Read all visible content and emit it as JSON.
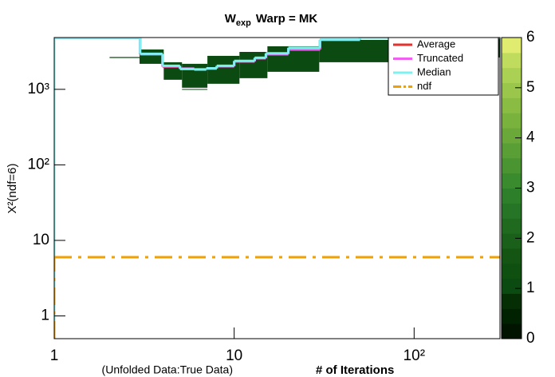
{
  "chart_data": {
    "type": "step",
    "title": "W",
    "title_sub": "exp",
    "title_rest": "Warp = MK",
    "xlabel_note": "(Unfolded Data:True Data)",
    "xlabel": "# of Iterations",
    "ylabel": "Χ²(ndf=6)",
    "xscale": "log",
    "yscale": "log",
    "xlim": [
      1,
      300
    ],
    "ylim": [
      0.5,
      4850
    ],
    "xticks": [
      1,
      10,
      {
        "value": 100,
        "label": "10²"
      }
    ],
    "yticks": [
      1,
      10,
      {
        "value": 100,
        "label": "10²"
      },
      {
        "value": 1000,
        "label": "10³"
      }
    ],
    "legend": "top-right",
    "hist2d": {
      "zlim": [
        0,
        6
      ],
      "zticks": [
        0,
        1,
        2,
        3,
        4,
        5,
        6
      ],
      "palette": [
        "#001400",
        "#002200",
        "#052e05",
        "#0b4a10",
        "#0f5010",
        "#145514",
        "#1a601a",
        "#206a20",
        "#267526",
        "#2e7f2a",
        "#3a8a2e",
        "#4a9432",
        "#5a9e36",
        "#6aa83a",
        "#7ab23e",
        "#8abc44",
        "#9ac64c",
        "#aad054",
        "#c0dc5e",
        "#e0ec70"
      ],
      "cells": [
        {
          "x": [
            2.03,
            4.06
          ],
          "y": [
            2600,
            2680
          ],
          "z": 1
        },
        {
          "x": [
            2.98,
            4.06
          ],
          "y": [
            2177,
            3373
          ],
          "z": 1
        },
        {
          "x": [
            4.06,
            5.13
          ],
          "y": [
            1339,
            2285
          ],
          "z": 1
        },
        {
          "x": [
            5.13,
            7.1
          ],
          "y": [
            1050,
            2177
          ],
          "z": 1
        },
        {
          "x": [
            5.13,
            7.1
          ],
          "y": [
            990,
            1010
          ],
          "z": 1
        },
        {
          "x": [
            7.1,
            10.7
          ],
          "y": [
            1185,
            2775
          ],
          "z": 1
        },
        {
          "x": [
            10.7,
            15.3
          ],
          "y": [
            1405,
            3130
          ],
          "z": 1
        },
        {
          "x": [
            15.3,
            29.7
          ],
          "y": [
            1707,
            3717
          ],
          "z": 1
        },
        {
          "x": [
            29.7,
            72.5
          ],
          "y": [
            2285,
            4520
          ],
          "z": 1
        },
        {
          "x": [
            72.5,
            300
          ],
          "y": [
            2645,
            4850
          ],
          "z": 1
        }
      ]
    },
    "series": [
      {
        "name": "Average",
        "color": "#e8312f",
        "dash": "solid",
        "bins": [
          1,
          3,
          4,
          5,
          6,
          7,
          8,
          10,
          13,
          15,
          20,
          30,
          50,
          300
        ],
        "values": [
          4800,
          2900,
          2000,
          1870,
          1840,
          1880,
          2020,
          2340,
          2580,
          2920,
          3370,
          4520,
          4850
        ]
      },
      {
        "name": "Truncated",
        "color": "#f060f0",
        "dash": "solid",
        "bins": [
          1,
          3,
          4,
          5,
          6,
          7,
          8,
          10,
          13,
          15,
          20,
          30,
          50,
          300
        ],
        "values": [
          4800,
          2920,
          2020,
          1880,
          1840,
          1880,
          2020,
          2340,
          2580,
          2920,
          3370,
          4520,
          4850
        ]
      },
      {
        "name": "Median",
        "color": "#7ff0f0",
        "dash": "solid",
        "bins": [
          1,
          3,
          4,
          5,
          6,
          7,
          8,
          10,
          13,
          15,
          20,
          30,
          50,
          300
        ],
        "values": [
          4800,
          2950,
          2050,
          1860,
          1830,
          1900,
          2050,
          2380,
          2620,
          3000,
          3550,
          4550,
          4850
        ]
      },
      {
        "name": "ndf",
        "color": "#f0a000",
        "dash": "dashdot",
        "bins": [
          1,
          300
        ],
        "values": [
          6
        ]
      }
    ]
  }
}
